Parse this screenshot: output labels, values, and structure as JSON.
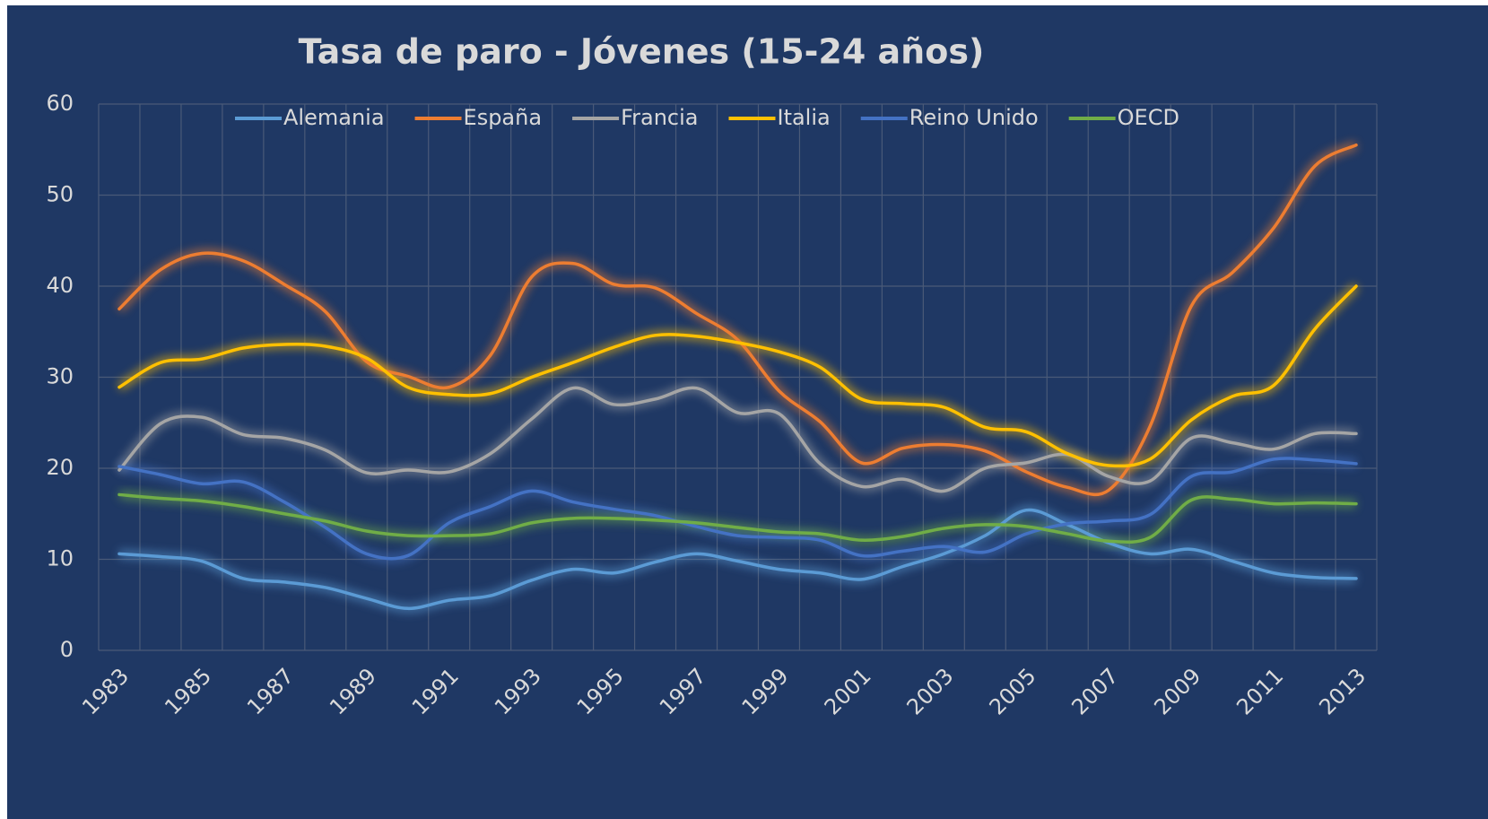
{
  "chart_data": {
    "type": "line",
    "title": "Tasa de paro - Jóvenes (15-24 años)",
    "categories": [
      "1983",
      null,
      "1985",
      null,
      "1987",
      null,
      "1989",
      null,
      "1991",
      null,
      "1993",
      null,
      "1995",
      null,
      "1997",
      null,
      "1999",
      null,
      "2001",
      null,
      "2003",
      null,
      "2005",
      null,
      "2007",
      null,
      "2009",
      null,
      "2011",
      null,
      "2013"
    ],
    "series": [
      {
        "name": "Alemania",
        "color": "#5b9bd5",
        "values": [
          10.6,
          10.3,
          9.8,
          7.9,
          7.5,
          6.9,
          5.7,
          4.6,
          5.5,
          6.0,
          7.7,
          8.9,
          8.5,
          9.7,
          10.6,
          9.8,
          8.9,
          8.5,
          7.8,
          9.2,
          10.6,
          12.6,
          15.4,
          13.8,
          11.8,
          10.6,
          11.1,
          9.8,
          8.5,
          8.0,
          7.9
        ]
      },
      {
        "name": "España",
        "color": "#ed7d31",
        "values": [
          37.5,
          41.8,
          43.6,
          42.8,
          40.2,
          37.2,
          31.7,
          30.1,
          28.9,
          32.4,
          41.0,
          42.5,
          40.2,
          39.8,
          37.0,
          34.1,
          28.5,
          25.1,
          20.6,
          22.2,
          22.6,
          21.9,
          19.6,
          17.9,
          17.6,
          24.6,
          37.8,
          41.5,
          46.4,
          53.2,
          55.5
        ]
      },
      {
        "name": "Francia",
        "color": "#a5a5a5",
        "values": [
          19.8,
          24.9,
          25.6,
          23.7,
          23.3,
          22.0,
          19.5,
          19.8,
          19.6,
          21.6,
          25.4,
          28.8,
          27.0,
          27.6,
          28.8,
          26.1,
          26.0,
          20.5,
          18.0,
          18.8,
          17.5,
          20.0,
          20.6,
          21.5,
          19.1,
          18.6,
          23.3,
          22.8,
          22.1,
          23.8,
          23.8
        ]
      },
      {
        "name": "Italia",
        "color": "#ffc000",
        "values": [
          28.9,
          31.6,
          32.0,
          33.2,
          33.6,
          33.4,
          32.1,
          28.9,
          28.1,
          28.2,
          30.0,
          31.6,
          33.3,
          34.6,
          34.5,
          33.8,
          32.8,
          31.1,
          27.6,
          27.1,
          26.7,
          24.5,
          24.0,
          21.6,
          20.3,
          21.0,
          25.3,
          27.9,
          29.1,
          35.3,
          40.0
        ]
      },
      {
        "name": "Reino Unido",
        "color": "#4472c4",
        "values": [
          20.2,
          19.3,
          18.3,
          18.5,
          16.3,
          13.5,
          10.6,
          10.4,
          14.0,
          15.8,
          17.5,
          16.3,
          15.5,
          14.8,
          13.6,
          12.6,
          12.4,
          12.1,
          10.4,
          10.9,
          11.4,
          10.8,
          12.8,
          13.9,
          14.2,
          14.9,
          19.1,
          19.6,
          21.0,
          20.9,
          20.5
        ]
      },
      {
        "name": "OECD",
        "color": "#70ad47",
        "values": [
          17.1,
          16.7,
          16.4,
          15.8,
          15.0,
          14.2,
          13.1,
          12.6,
          12.6,
          12.8,
          14.0,
          14.5,
          14.5,
          14.3,
          14.0,
          13.5,
          13.0,
          12.8,
          12.1,
          12.5,
          13.4,
          13.8,
          13.6,
          12.8,
          12.0,
          12.4,
          16.5,
          16.6,
          16.1,
          16.2,
          16.1
        ]
      }
    ],
    "ylim": [
      0,
      60
    ],
    "yticks": [
      0,
      10,
      20,
      30,
      40,
      50,
      60
    ],
    "grid": true,
    "legend": "top"
  }
}
